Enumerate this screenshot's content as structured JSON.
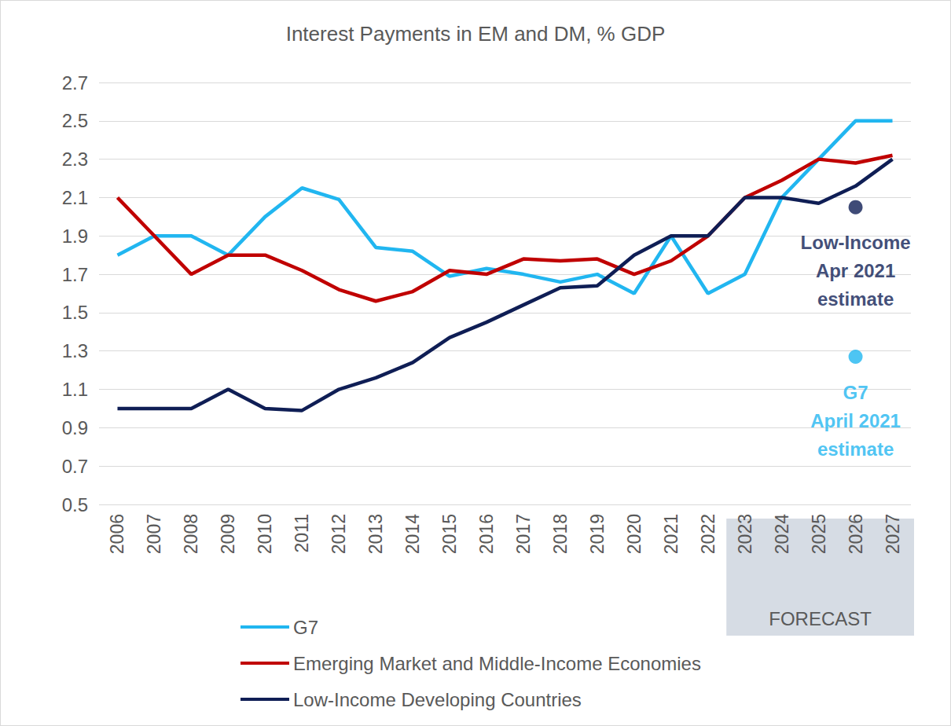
{
  "chart_data": {
    "type": "line",
    "title": "Interest Payments in EM and DM, % GDP",
    "categories": [
      "2006",
      "2007",
      "2008",
      "2009",
      "2010",
      "2011",
      "2012",
      "2013",
      "2014",
      "2015",
      "2016",
      "2017",
      "2018",
      "2019",
      "2020",
      "2021",
      "2022",
      "2023",
      "2024",
      "2025",
      "2026",
      "2027"
    ],
    "series": [
      {
        "name": "G7",
        "color": "#21b6f0",
        "values": [
          1.8,
          1.9,
          1.9,
          1.8,
          2.0,
          2.15,
          2.09,
          1.84,
          1.82,
          1.69,
          1.73,
          1.7,
          1.66,
          1.7,
          1.6,
          1.9,
          1.6,
          1.7,
          2.1,
          2.3,
          2.5,
          2.5
        ]
      },
      {
        "name": "Emerging Market and Middle-Income Economies",
        "color": "#c00000",
        "values": [
          2.1,
          1.9,
          1.7,
          1.8,
          1.8,
          1.72,
          1.62,
          1.56,
          1.61,
          1.72,
          1.7,
          1.78,
          1.77,
          1.78,
          1.7,
          1.77,
          1.9,
          2.1,
          2.19,
          2.3,
          2.28,
          2.32
        ]
      },
      {
        "name": "Low-Income Developing Countries",
        "color": "#0f1e55",
        "values": [
          1.0,
          1.0,
          1.0,
          1.1,
          1.0,
          0.99,
          1.1,
          1.16,
          1.24,
          1.37,
          1.45,
          1.54,
          1.63,
          1.64,
          1.8,
          1.9,
          1.9,
          2.1,
          2.1,
          2.07,
          2.16,
          2.3
        ]
      }
    ],
    "annotations": [
      {
        "text": "Low-Income\nApr 2021\nestimate",
        "x": "2026",
        "y": 2.05,
        "color": "#0f1e55"
      },
      {
        "text": "G7\nApril 2021\nestimate",
        "x": "2026",
        "y": 1.27,
        "color": "#21b6f0"
      }
    ],
    "forecast": {
      "label": "FORECAST",
      "from": "2023",
      "to": "2027"
    },
    "ylim": [
      0.5,
      2.7
    ],
    "yticks": [
      0.5,
      0.7,
      0.9,
      1.1,
      1.3,
      1.5,
      1.7,
      1.9,
      2.1,
      2.3,
      2.5,
      2.7
    ],
    "grid": true,
    "legend": "bottom"
  }
}
